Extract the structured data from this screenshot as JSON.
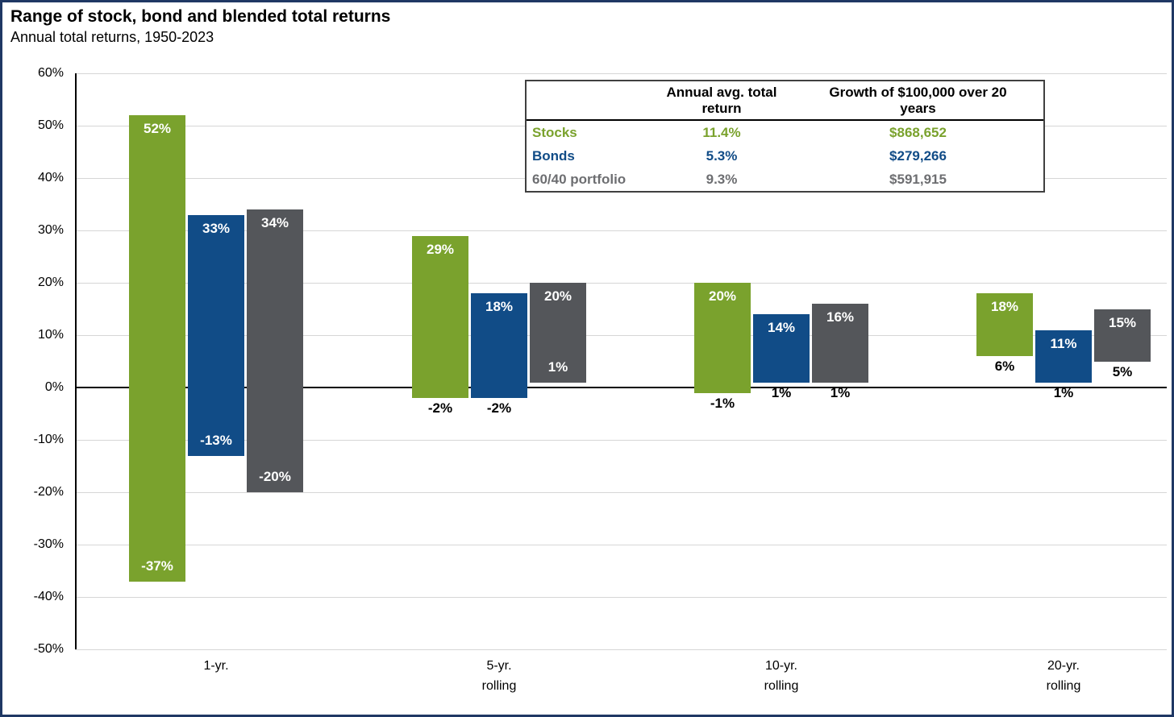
{
  "page": {
    "title": "Range of stock, bond and blended total returns",
    "subtitle": "Annual total returns, 1950-2023"
  },
  "colors": {
    "stocks": "#7aa22d",
    "bonds": "#114c87",
    "portfolio": "#54565a",
    "portfolio_text": "#6d6e71",
    "grid": "#d6d6d6",
    "frame": "#1f3864"
  },
  "legend_table": {
    "col_headers": [
      "Annual avg. total return",
      "Growth of $100,000 over 20 years"
    ],
    "rows": [
      {
        "label": "Stocks",
        "avg_return": "11.4%",
        "growth": "$868,652",
        "color_key": "stocks"
      },
      {
        "label": "Bonds",
        "avg_return": "5.3%",
        "growth": "$279,266",
        "color_key": "bonds"
      },
      {
        "label": "60/40 portfolio",
        "avg_return": "9.3%",
        "growth": "$591,915",
        "color_key": "portfolio_text"
      }
    ]
  },
  "chart_data": {
    "type": "bar",
    "subtype": "floating-range-columns",
    "title": "Range of stock, bond and blended total returns",
    "subtitle": "Annual total returns, 1950-2023",
    "categories": [
      "1-yr.",
      "5-yr. rolling",
      "10-yr. rolling",
      "20-yr. rolling"
    ],
    "category_lines": [
      [
        "1-yr."
      ],
      [
        "5-yr.",
        "rolling"
      ],
      [
        "10-yr.",
        "rolling"
      ],
      [
        "20-yr.",
        "rolling"
      ]
    ],
    "ylim": [
      -50,
      60
    ],
    "yticks": [
      60,
      50,
      40,
      30,
      20,
      10,
      0,
      -10,
      -20,
      -30,
      -40,
      -50
    ],
    "ytick_suffix": "%",
    "grid": true,
    "legend_position": "top-right-table",
    "series": [
      {
        "name": "Stocks",
        "color_key": "stocks",
        "ranges": [
          {
            "max": 52,
            "min": -37
          },
          {
            "max": 29,
            "min": -2
          },
          {
            "max": 20,
            "min": -1
          },
          {
            "max": 18,
            "min": 6
          }
        ]
      },
      {
        "name": "Bonds",
        "color_key": "bonds",
        "ranges": [
          {
            "max": 33,
            "min": -13
          },
          {
            "max": 18,
            "min": -2
          },
          {
            "max": 14,
            "min": 1
          },
          {
            "max": 11,
            "min": 1
          }
        ]
      },
      {
        "name": "60/40 portfolio",
        "color_key": "portfolio",
        "ranges": [
          {
            "max": 34,
            "min": -20
          },
          {
            "max": 20,
            "min": 1
          },
          {
            "max": 16,
            "min": 1
          },
          {
            "max": 15,
            "min": 5
          }
        ]
      }
    ],
    "label_format": "{value}%",
    "max_label_position": "inside-top-white",
    "min_label_positions": [
      [
        "inside",
        "below",
        "below",
        "below"
      ],
      [
        "inside",
        "below",
        "below",
        "below"
      ],
      [
        "inside",
        "inside",
        "below",
        "below"
      ]
    ]
  }
}
